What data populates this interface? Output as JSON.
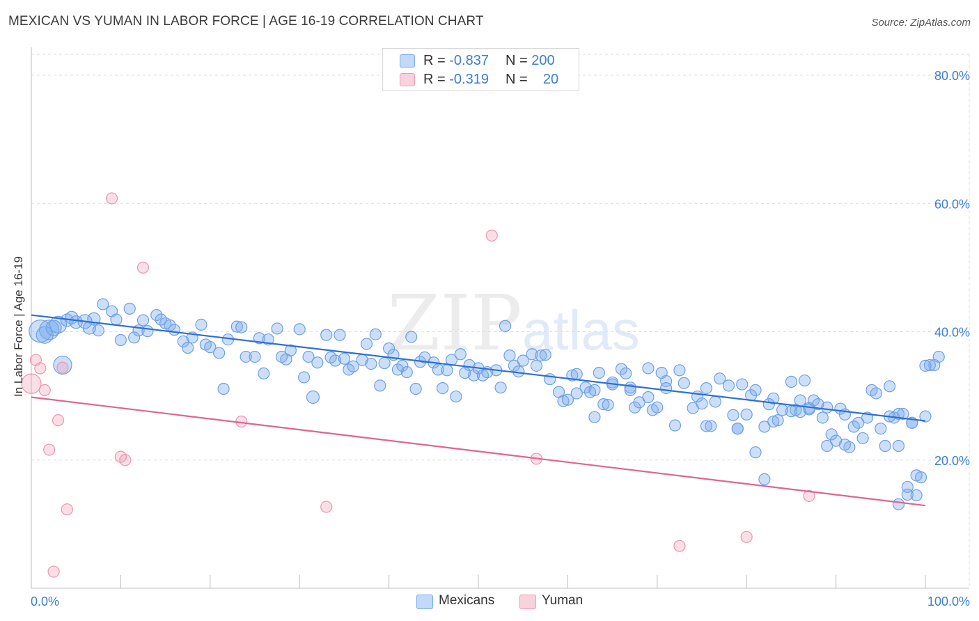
{
  "title": "MEXICAN VS YUMAN IN LABOR FORCE | AGE 16-19 CORRELATION CHART",
  "source": "Source: ZipAtlas.com",
  "watermark": {
    "zip": "ZIP",
    "atlas": "atlas"
  },
  "colors": {
    "mexicans": "#7aaaf0",
    "mexicans_line": "#2b6fd6",
    "yuman": "#f19bb5",
    "yuman_line": "#e0648f",
    "axis_text": "#3b7dd8"
  },
  "legend": {
    "rows": [
      {
        "r_label": "R =",
        "r_value": "-0.837",
        "n_label": "N =",
        "n_value": "200"
      },
      {
        "r_label": "R =",
        "r_value": "-0.319",
        "n_label": "N =",
        "n_value": "20"
      }
    ]
  },
  "bottom_legend": {
    "mexicans": "Mexicans",
    "yuman": "Yuman"
  },
  "chart_data": {
    "type": "scatter",
    "title": "MEXICAN VS YUMAN IN LABOR FORCE | AGE 16-19 CORRELATION CHART",
    "xlabel": "",
    "ylabel": "In Labor Force | Age 16-19",
    "xlim": [
      0,
      100
    ],
    "ylim": [
      0,
      85
    ],
    "x_tick_labels": [
      "0.0%",
      "100.0%"
    ],
    "y_ticks": [
      20,
      40,
      60,
      80
    ],
    "y_tick_labels": [
      "20.0%",
      "40.0%",
      "60.0%",
      "80.0%"
    ],
    "grid": true,
    "series": [
      {
        "name": "Mexicans",
        "R": -0.837,
        "N": 200,
        "trend": {
          "x": [
            0,
            100
          ],
          "y": [
            42.6,
            26.1
          ]
        },
        "points": [
          [
            1,
            40.1,
            14
          ],
          [
            2,
            40.3,
            12
          ],
          [
            1.5,
            39.5,
            10
          ],
          [
            2.5,
            40.6,
            9
          ],
          [
            3,
            41.1,
            10
          ],
          [
            3.5,
            34.8,
            11
          ],
          [
            4,
            41.8,
            7
          ],
          [
            4.5,
            42.2,
            7
          ],
          [
            5,
            41.5,
            7
          ],
          [
            6,
            41.6,
            8
          ],
          [
            6.5,
            40.6,
            7
          ],
          [
            7,
            42.0,
            7
          ],
          [
            7.5,
            40.2,
            6
          ],
          [
            8,
            44.3,
            6
          ],
          [
            9,
            43.2,
            6
          ],
          [
            9.5,
            41.9,
            6
          ],
          [
            10,
            38.7,
            6
          ],
          [
            11,
            43.6,
            6
          ],
          [
            11.5,
            39.1,
            6
          ],
          [
            12,
            40.2,
            6
          ],
          [
            12.5,
            41.8,
            6
          ],
          [
            13,
            40.1,
            6
          ],
          [
            14,
            42.6,
            6
          ],
          [
            14.5,
            41.9,
            6
          ],
          [
            15,
            41.3,
            6
          ],
          [
            15.5,
            41.0,
            6
          ],
          [
            16,
            40.3,
            6
          ],
          [
            17,
            38.5,
            6
          ],
          [
            17.5,
            37.5,
            6
          ],
          [
            18,
            39.1,
            6
          ],
          [
            19,
            41.1,
            6
          ],
          [
            19.5,
            38.0,
            6
          ],
          [
            20,
            37.6,
            6
          ],
          [
            21,
            36.7,
            6
          ],
          [
            21.5,
            31.1,
            6
          ],
          [
            22,
            38.8,
            6
          ],
          [
            23,
            40.8,
            6
          ],
          [
            23.5,
            40.7,
            6
          ],
          [
            24,
            36.1,
            6
          ],
          [
            25,
            36.1,
            6
          ],
          [
            25.5,
            39.0,
            6
          ],
          [
            26,
            33.5,
            6
          ],
          [
            26.5,
            38.8,
            6
          ],
          [
            27.5,
            40.5,
            6
          ],
          [
            28,
            36.1,
            6
          ],
          [
            28.5,
            35.7,
            6
          ],
          [
            29,
            37.1,
            6
          ],
          [
            30,
            40.4,
            6
          ],
          [
            30.5,
            32.9,
            6
          ],
          [
            31,
            36.1,
            6
          ],
          [
            31.5,
            29.8,
            7
          ],
          [
            32,
            35.2,
            6
          ],
          [
            33,
            39.5,
            6
          ],
          [
            33.5,
            36.0,
            6
          ],
          [
            34,
            35.5,
            6
          ],
          [
            34.5,
            39.5,
            6
          ],
          [
            35,
            35.8,
            6
          ],
          [
            35.5,
            34.1,
            6
          ],
          [
            36,
            34.6,
            6
          ],
          [
            37,
            35.6,
            6
          ],
          [
            37.5,
            38.1,
            6
          ],
          [
            38,
            35.0,
            6
          ],
          [
            38.5,
            39.6,
            6
          ],
          [
            39,
            31.6,
            6
          ],
          [
            39.5,
            35.1,
            6
          ],
          [
            40,
            37.4,
            6
          ],
          [
            40.5,
            36.4,
            6
          ],
          [
            41,
            34.1,
            6
          ],
          [
            41.5,
            34.7,
            6
          ],
          [
            42,
            33.7,
            6
          ],
          [
            42.5,
            39.2,
            6
          ],
          [
            43,
            31.1,
            6
          ],
          [
            43.5,
            35.3,
            6
          ],
          [
            44,
            36.0,
            6
          ],
          [
            45,
            35.2,
            6
          ],
          [
            45.5,
            34.1,
            6
          ],
          [
            46,
            31.2,
            6
          ],
          [
            46.5,
            34.0,
            6
          ],
          [
            47,
            35.6,
            6
          ],
          [
            47.5,
            29.9,
            6
          ],
          [
            48,
            36.5,
            6
          ],
          [
            48.5,
            33.6,
            6
          ],
          [
            49,
            34.8,
            6
          ],
          [
            49.5,
            33.2,
            6
          ],
          [
            50,
            34.3,
            6
          ],
          [
            50.5,
            33.2,
            6
          ],
          [
            51,
            33.7,
            6
          ],
          [
            52,
            34.0,
            6
          ],
          [
            52.5,
            31.3,
            6
          ],
          [
            53,
            40.9,
            6
          ],
          [
            53.5,
            36.3,
            6
          ],
          [
            54,
            34.7,
            6
          ],
          [
            54.5,
            33.8,
            6
          ],
          [
            55,
            35.5,
            6
          ],
          [
            56,
            36.5,
            6
          ],
          [
            56.5,
            34.7,
            6
          ],
          [
            57,
            36.3,
            6
          ],
          [
            57.5,
            36.4,
            6
          ],
          [
            58,
            32.6,
            6
          ],
          [
            59,
            30.6,
            6
          ],
          [
            59.5,
            29.2,
            6
          ],
          [
            60,
            29.4,
            6
          ],
          [
            60.5,
            33.2,
            6
          ],
          [
            61,
            33.4,
            6
          ],
          [
            62,
            31.3,
            6
          ],
          [
            62.5,
            30.6,
            6
          ],
          [
            63,
            26.7,
            6
          ],
          [
            63.5,
            33.6,
            6
          ],
          [
            64,
            28.7,
            6
          ],
          [
            64.5,
            28.6,
            6
          ],
          [
            65,
            32.1,
            6
          ],
          [
            66,
            34.2,
            6
          ],
          [
            66.5,
            33.5,
            6
          ],
          [
            67,
            31.3,
            6
          ],
          [
            67.5,
            28.2,
            6
          ],
          [
            68,
            29.0,
            6
          ],
          [
            69,
            34.3,
            6
          ],
          [
            69.5,
            27.8,
            6
          ],
          [
            70,
            28.2,
            6
          ],
          [
            70.5,
            33.6,
            6
          ],
          [
            71,
            32.3,
            6
          ],
          [
            72,
            25.4,
            6
          ],
          [
            72.5,
            34.0,
            6
          ],
          [
            73,
            32.0,
            6
          ],
          [
            74,
            28.1,
            6
          ],
          [
            74.5,
            29.9,
            6
          ],
          [
            75,
            28.8,
            6
          ],
          [
            75.5,
            31.2,
            6
          ],
          [
            76,
            25.3,
            6
          ],
          [
            76.5,
            29.1,
            6
          ],
          [
            77,
            32.7,
            6
          ],
          [
            78,
            31.6,
            6
          ],
          [
            78.5,
            27.0,
            6
          ],
          [
            79,
            24.9,
            6
          ],
          [
            79.5,
            31.8,
            6
          ],
          [
            80,
            27.1,
            6
          ],
          [
            80.5,
            30.1,
            6
          ],
          [
            81,
            30.9,
            6
          ],
          [
            82,
            25.2,
            6
          ],
          [
            82.5,
            28.7,
            6
          ],
          [
            83,
            29.6,
            6
          ],
          [
            83.5,
            26.2,
            6
          ],
          [
            84,
            27.8,
            6
          ],
          [
            85,
            32.2,
            6
          ],
          [
            85.5,
            27.8,
            6
          ],
          [
            86,
            29.3,
            6
          ],
          [
            86.5,
            32.4,
            6
          ],
          [
            87,
            27.9,
            6
          ],
          [
            87.5,
            29.3,
            6
          ],
          [
            88,
            28.7,
            6
          ],
          [
            88.5,
            26.6,
            6
          ],
          [
            89,
            28.2,
            6
          ],
          [
            89.5,
            24.0,
            6
          ],
          [
            90,
            23.0,
            6
          ],
          [
            90.5,
            28.0,
            6
          ],
          [
            91,
            27.1,
            6
          ],
          [
            91.5,
            22.0,
            6
          ],
          [
            92,
            25.2,
            6
          ],
          [
            92.5,
            25.8,
            6
          ],
          [
            93,
            23.4,
            6
          ],
          [
            94,
            30.9,
            6
          ],
          [
            94.5,
            30.4,
            6
          ],
          [
            95,
            24.9,
            6
          ],
          [
            95.5,
            22.2,
            6
          ],
          [
            96,
            31.5,
            6
          ],
          [
            96.5,
            26.6,
            6
          ],
          [
            97,
            22.2,
            6
          ],
          [
            97.5,
            27.2,
            6
          ],
          [
            98,
            15.8,
            6
          ],
          [
            98.5,
            25.8,
            6
          ],
          [
            99,
            14.5,
            6
          ],
          [
            99.5,
            17.3,
            6
          ],
          [
            100,
            26.8,
            6
          ],
          [
            99,
            17.6,
            6
          ],
          [
            98,
            14.6,
            6
          ],
          [
            97,
            13.1,
            6
          ],
          [
            96,
            26.8,
            6
          ],
          [
            93.5,
            26.6,
            6
          ],
          [
            91,
            22.4,
            6
          ],
          [
            89,
            22.2,
            6
          ],
          [
            87,
            28.1,
            6
          ],
          [
            85,
            27.6,
            6
          ],
          [
            83,
            26.0,
            6
          ],
          [
            81,
            21.2,
            6
          ],
          [
            79,
            24.9,
            6
          ],
          [
            82,
            17.0,
            6
          ],
          [
            86,
            27.5,
            6
          ],
          [
            75.5,
            25.3,
            6
          ],
          [
            71,
            31.2,
            6
          ],
          [
            69,
            29.8,
            6
          ],
          [
            67,
            30.9,
            6
          ],
          [
            65,
            31.8,
            6
          ],
          [
            63,
            30.9,
            6
          ],
          [
            61,
            30.4,
            6
          ],
          [
            100.5,
            34.8,
            6
          ],
          [
            101,
            34.8,
            6
          ],
          [
            101.5,
            36.1,
            6
          ],
          [
            100,
            34.7,
            6
          ],
          [
            98.5,
            25.8,
            6
          ],
          [
            97,
            27.2,
            6
          ]
        ]
      },
      {
        "name": "Yuman",
        "R": -0.319,
        "N": 20,
        "trend": {
          "x": [
            0,
            100
          ],
          "y": [
            29.8,
            12.9
          ]
        },
        "points": [
          [
            0,
            31.9,
            13
          ],
          [
            0.5,
            35.6,
            7
          ],
          [
            1,
            34.3,
            7
          ],
          [
            1.5,
            30.9,
            7
          ],
          [
            2,
            21.6,
            7
          ],
          [
            2.5,
            2.6,
            7
          ],
          [
            3,
            26.2,
            7
          ],
          [
            3.5,
            34.4,
            7
          ],
          [
            4,
            12.3,
            7
          ],
          [
            9,
            60.8,
            7
          ],
          [
            10,
            20.5,
            7
          ],
          [
            10.5,
            20.0,
            7
          ],
          [
            12.5,
            50.0,
            7
          ],
          [
            23.5,
            26.0,
            7
          ],
          [
            33,
            12.7,
            7
          ],
          [
            51.5,
            55.0,
            7
          ],
          [
            56.5,
            20.2,
            7
          ],
          [
            72.5,
            6.6,
            7
          ],
          [
            80,
            8.0,
            7
          ],
          [
            87,
            14.4,
            7
          ]
        ]
      }
    ]
  }
}
